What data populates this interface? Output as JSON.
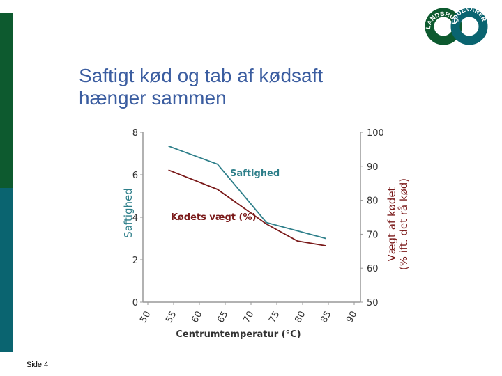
{
  "slide": {
    "title_lines": [
      "Saftigt kød og tab af kødsaft",
      "hænger sammen"
    ],
    "footer": "Side 4",
    "logo": [
      "LANDBRUG",
      "FØDEVARER"
    ]
  },
  "chart_data": {
    "type": "line",
    "xlabel": "Centrumtemperatur (°C)",
    "ylabel": "Saftighed",
    "y2label": [
      "Vægt af kødet",
      "(% ift. det rå kød)"
    ],
    "xlim": [
      50,
      90
    ],
    "xticks": [
      50,
      55,
      60,
      65,
      70,
      75,
      80,
      85,
      90
    ],
    "ylim": [
      0,
      8
    ],
    "yticks": [
      0,
      2,
      4,
      6,
      8
    ],
    "y2lim": [
      50,
      100
    ],
    "y2ticks": [
      50,
      60,
      70,
      80,
      90,
      100
    ],
    "series": [
      {
        "name": "Saftighed",
        "color": "#2e7f8a",
        "x": [
          54,
          63.5,
          73,
          84.5
        ],
        "values": [
          7.35,
          6.5,
          3.75,
          3
        ]
      },
      {
        "name": "Kødets vægt (%)",
        "color": "#7a1a1a",
        "axis": "y2",
        "x": [
          54,
          63.5,
          73,
          79,
          84.5
        ],
        "values": [
          88.9,
          83.2,
          73,
          68,
          66.6
        ]
      }
    ]
  }
}
